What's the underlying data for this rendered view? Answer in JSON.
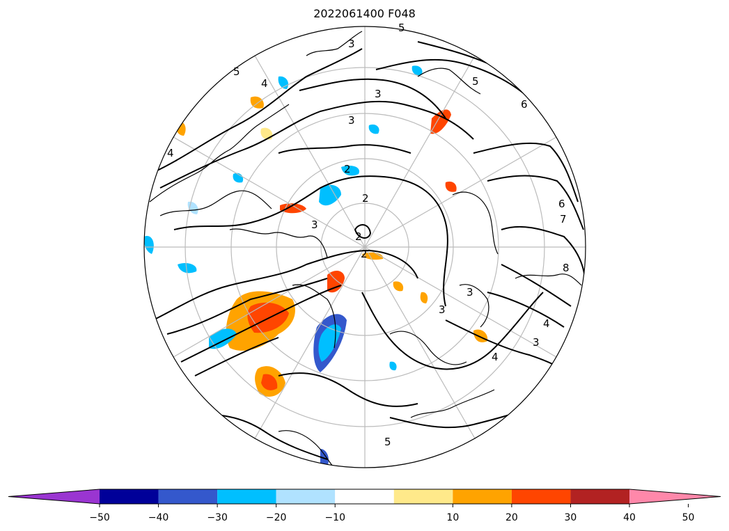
{
  "title": "2022061400 F048",
  "colorbar": {
    "ticks": [
      "-50",
      "-40",
      "-30",
      "-20",
      "-10",
      "10",
      "20",
      "30",
      "40",
      "50"
    ],
    "bins": [
      {
        "range": "< -50",
        "color": "#9a35d1"
      },
      {
        "range": "-50 to -40",
        "color": "#000099"
      },
      {
        "range": "-40 to -30",
        "color": "#3458cc"
      },
      {
        "range": "-30 to -20",
        "color": "#00bfff"
      },
      {
        "range": "-20 to -10",
        "color": "#b0e2ff"
      },
      {
        "range": "-10 to 10",
        "color": "#ffffff"
      },
      {
        "range": "10 to 20",
        "color": "#ffe98a"
      },
      {
        "range": "20 to 30",
        "color": "#ffa300"
      },
      {
        "range": "30 to 40",
        "color": "#ff4500"
      },
      {
        "range": "40 to 50",
        "color": "#b22222"
      },
      {
        "range": "> 50",
        "color": "#ff88aa"
      }
    ]
  },
  "map": {
    "projection": "north-polar-stereographic",
    "contour_labels": [
      "3",
      "3",
      "5",
      "6",
      "3",
      "3",
      "2",
      "2",
      "2",
      "2",
      "3",
      "4",
      "5",
      "6",
      "7",
      "8",
      "3",
      "4",
      "3",
      "5",
      "4",
      "4",
      "5"
    ]
  }
}
